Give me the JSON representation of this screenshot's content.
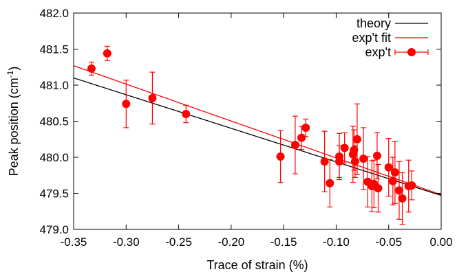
{
  "chart_data": {
    "type": "scatter",
    "xlabel": "Trace of strain (%)",
    "ylabel": {
      "main": "Peak position (cm",
      "sup": "-1",
      "close": ")"
    },
    "xlim": [
      -0.35,
      0.0
    ],
    "ylim": [
      479.0,
      482.0
    ],
    "x_ticks": [
      -0.35,
      -0.3,
      -0.25,
      -0.2,
      -0.15,
      -0.1,
      -0.05,
      0.0
    ],
    "x_tick_labels": [
      "-0.35",
      "-0.30",
      "-0.25",
      "-0.20",
      "-0.15",
      "-0.10",
      "-0.05",
      "0.00"
    ],
    "y_ticks": [
      479.0,
      479.5,
      480.0,
      480.5,
      481.0,
      481.5,
      482.0
    ],
    "y_tick_labels": [
      "479.0",
      "479.5",
      "480.0",
      "480.5",
      "481.0",
      "481.5",
      "482.0"
    ],
    "grid": false,
    "legend_position": "top-right",
    "legend": [
      {
        "label": "theory",
        "kind": "line",
        "color": "#000000"
      },
      {
        "label": "exp't fit",
        "kind": "line",
        "color": "#ff0000"
      },
      {
        "label": "exp't",
        "kind": "marker",
        "color": "#ff0000"
      }
    ],
    "series": [
      {
        "name": "theory",
        "type": "line",
        "color": "#000000",
        "x": [
          -0.35,
          0.0
        ],
        "y": [
          481.1,
          479.47
        ]
      },
      {
        "name": "exp't fit",
        "type": "line",
        "color": "#ff0000",
        "x": [
          -0.35,
          0.0
        ],
        "y": [
          481.27,
          479.48
        ]
      },
      {
        "name": "exp't",
        "type": "scatter",
        "color": "#ff0000",
        "points": [
          {
            "x": -0.333,
            "y": 481.23,
            "err": 0.09
          },
          {
            "x": -0.318,
            "y": 481.44,
            "err": 0.1
          },
          {
            "x": -0.3,
            "y": 480.74,
            "err": 0.33
          },
          {
            "x": -0.275,
            "y": 480.82,
            "err": 0.36
          },
          {
            "x": -0.243,
            "y": 480.6,
            "err": 0.12
          },
          {
            "x": -0.153,
            "y": 480.01,
            "err": 0.36
          },
          {
            "x": -0.139,
            "y": 480.17,
            "err": 0.4
          },
          {
            "x": -0.133,
            "y": 480.27,
            "err": 0.16
          },
          {
            "x": -0.129,
            "y": 480.41,
            "err": 0.12
          },
          {
            "x": -0.111,
            "y": 479.94,
            "err": 0.42
          },
          {
            "x": -0.106,
            "y": 479.64,
            "err": 0.33
          },
          {
            "x": -0.097,
            "y": 480.01,
            "err": 0.32
          },
          {
            "x": -0.097,
            "y": 479.94,
            "err": 0.22
          },
          {
            "x": -0.092,
            "y": 480.13,
            "err": 0.21
          },
          {
            "x": -0.084,
            "y": 480.04,
            "err": 0.39
          },
          {
            "x": -0.083,
            "y": 480.1,
            "err": 0.28
          },
          {
            "x": -0.082,
            "y": 479.94,
            "err": 0.22
          },
          {
            "x": -0.08,
            "y": 480.25,
            "err": 0.49
          },
          {
            "x": -0.074,
            "y": 479.98,
            "err": 0.43
          },
          {
            "x": -0.07,
            "y": 479.66,
            "err": 0.35
          },
          {
            "x": -0.066,
            "y": 479.6,
            "err": 0.35
          },
          {
            "x": -0.064,
            "y": 479.63,
            "err": 0.33
          },
          {
            "x": -0.061,
            "y": 480.02,
            "err": 0.32
          },
          {
            "x": -0.06,
            "y": 479.57,
            "err": 0.33
          },
          {
            "x": -0.05,
            "y": 479.86,
            "err": 0.4
          },
          {
            "x": -0.046,
            "y": 479.67,
            "err": 0.33
          },
          {
            "x": -0.044,
            "y": 479.79,
            "err": 0.43
          },
          {
            "x": -0.04,
            "y": 479.54,
            "err": 0.4
          },
          {
            "x": -0.037,
            "y": 479.43,
            "err": 0.36
          },
          {
            "x": -0.031,
            "y": 479.6,
            "err": 0.36
          },
          {
            "x": -0.028,
            "y": 479.61,
            "err": 0.2
          }
        ]
      }
    ]
  }
}
